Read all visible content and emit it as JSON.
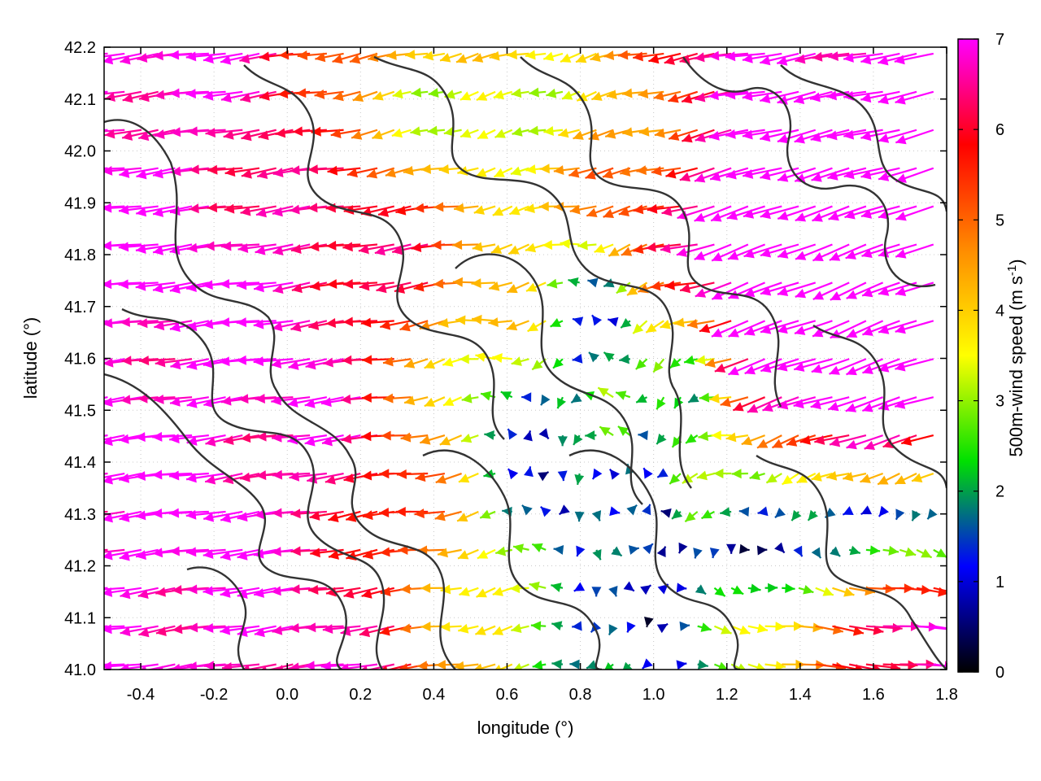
{
  "chart_data": {
    "type": "vector-field",
    "xlabel": "longitude (°)",
    "ylabel": "latitude (°)",
    "colorbar_label_main": "500m-wind speed (m s",
    "colorbar_label_sup": "-1",
    "colorbar_label_end": ")",
    "xlim": [
      -0.5,
      1.8
    ],
    "ylim": [
      41.0,
      42.2
    ],
    "xticks": [
      "-0.4",
      "-0.2",
      "0.0",
      "0.2",
      "0.4",
      "0.6",
      "0.8",
      "1.0",
      "1.2",
      "1.4",
      "1.6",
      "1.8"
    ],
    "xtick_values": [
      -0.4,
      -0.2,
      0.0,
      0.2,
      0.4,
      0.6,
      0.8,
      1.0,
      1.2,
      1.4,
      1.6,
      1.8
    ],
    "yticks": [
      "41.0",
      "41.1",
      "41.2",
      "41.3",
      "41.4",
      "41.5",
      "41.6",
      "41.7",
      "41.8",
      "41.9",
      "42.0",
      "42.1",
      "42.2"
    ],
    "ytick_values": [
      41.0,
      41.1,
      41.2,
      41.3,
      41.4,
      41.5,
      41.6,
      41.7,
      41.8,
      41.9,
      42.0,
      42.1,
      42.2
    ],
    "colorbar": {
      "range": [
        0,
        7
      ],
      "ticks": [
        "0",
        "1",
        "2",
        "3",
        "4",
        "5",
        "6",
        "7"
      ],
      "tick_values": [
        0,
        1,
        2,
        3,
        4,
        5,
        6,
        7
      ],
      "colors": [
        "#000000",
        "#0000ff",
        "#00e000",
        "#ffff00",
        "#ff8c00",
        "#ff0000",
        "#ff00ff"
      ]
    },
    "grid": true,
    "vectors_summary": {
      "description": "wind vectors colored by speed; strong easterly-to-westward flow (magenta, ~7 m/s) over the west and north-west, weaker mixed flow (green/yellow, 1-3 m/s) near 0.6-1.0°, and strong eastward flow (magenta, ~7 m/s) in the south-east",
      "arrow_spacing_deg": 0.046
    }
  }
}
